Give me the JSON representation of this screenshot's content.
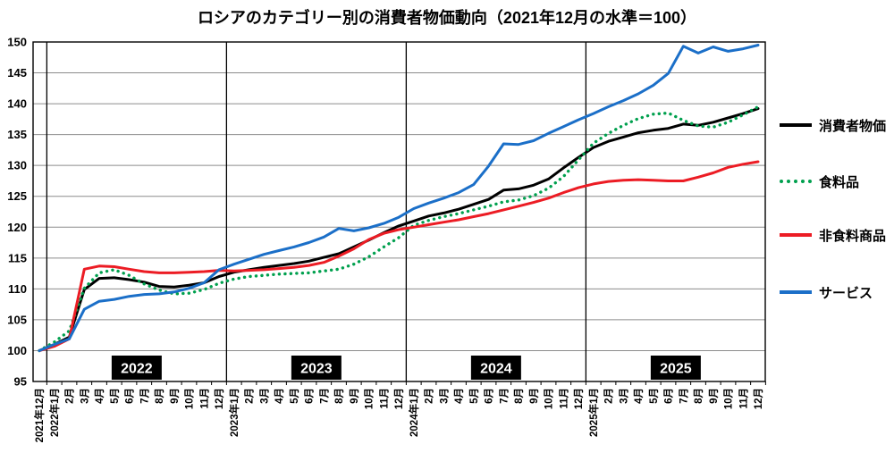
{
  "title": "ロシアのカテゴリー別の消費者物価動向（2021年12月の水準＝100）",
  "colors": {
    "cpi": "#000000",
    "food": "#00A04E",
    "nonfood": "#EC1C24",
    "services": "#1B6FC8",
    "grid": "#8c8c8c",
    "axis": "#000000",
    "year_badge_bg": "#000000",
    "year_badge_text": "#ffffff"
  },
  "chart_data": {
    "type": "line",
    "x": [
      "2021年12月",
      "2022年1月",
      "2月",
      "3月",
      "4月",
      "5月",
      "6月",
      "7月",
      "8月",
      "9月",
      "10月",
      "11月",
      "12月",
      "2023年1月",
      "2月",
      "3月",
      "4月",
      "5月",
      "6月",
      "7月",
      "8月",
      "9月",
      "10月",
      "11月",
      "12月",
      "2024年1月",
      "2月",
      "3月",
      "4月",
      "5月",
      "6月",
      "7月",
      "8月",
      "9月",
      "10月",
      "11月",
      "12月",
      "2025年1月",
      "2月",
      "3月",
      "4月",
      "5月",
      "6月",
      "7月",
      "8月",
      "9月",
      "10月",
      "11月",
      "12月"
    ],
    "ylim": [
      95,
      150
    ],
    "yticks": [
      95,
      100,
      105,
      110,
      115,
      120,
      125,
      130,
      135,
      140,
      145,
      150
    ],
    "grid": true,
    "legend_position": "right",
    "year_labels": [
      "2022",
      "2023",
      "2024",
      "2025"
    ],
    "series": [
      {
        "name": "消費者物価",
        "color_key": "cpi",
        "style": "solid",
        "values": [
          100,
          101.0,
          102.2,
          109.9,
          111.7,
          111.8,
          111.5,
          111.1,
          110.4,
          110.3,
          110.6,
          111.0,
          112.0,
          112.7,
          113.1,
          113.5,
          113.8,
          114.1,
          114.5,
          115.1,
          115.7,
          116.8,
          117.9,
          119.1,
          120.2,
          121.0,
          121.8,
          122.3,
          122.9,
          123.7,
          124.5,
          126.0,
          126.2,
          126.8,
          127.8,
          129.6,
          131.3,
          132.9,
          133.9,
          134.6,
          135.3,
          135.7,
          136.0,
          136.7,
          136.5,
          137.0,
          137.7,
          138.4,
          139.2
        ]
      },
      {
        "name": "食料品",
        "color_key": "food",
        "style": "dotted",
        "values": [
          100,
          101.4,
          103.2,
          110.1,
          112.6,
          113.1,
          112.2,
          110.8,
          109.8,
          109.2,
          109.3,
          109.9,
          110.9,
          111.6,
          112.0,
          112.2,
          112.4,
          112.5,
          112.6,
          112.9,
          113.2,
          114.0,
          115.2,
          116.8,
          118.3,
          120.3,
          121.1,
          121.7,
          122.2,
          122.8,
          123.4,
          124.1,
          124.4,
          125.1,
          126.3,
          128.2,
          130.9,
          133.6,
          135.2,
          136.5,
          137.6,
          138.3,
          138.5,
          137.3,
          136.4,
          136.2,
          137.0,
          138.2,
          139.5
        ]
      },
      {
        "name": "非食料商品",
        "color_key": "nonfood",
        "style": "solid",
        "values": [
          100,
          100.7,
          101.9,
          113.2,
          113.7,
          113.6,
          113.2,
          112.8,
          112.6,
          112.6,
          112.7,
          112.8,
          113.0,
          112.9,
          113.0,
          113.1,
          113.3,
          113.5,
          113.8,
          114.3,
          115.3,
          116.5,
          118.0,
          119.0,
          119.6,
          120.0,
          120.4,
          120.8,
          121.2,
          121.7,
          122.2,
          122.8,
          123.4,
          124.0,
          124.7,
          125.6,
          126.4,
          127.0,
          127.4,
          127.6,
          127.7,
          127.6,
          127.5,
          127.5,
          128.1,
          128.8,
          129.7,
          130.2,
          130.6
        ]
      },
      {
        "name": "サービス",
        "color_key": "services",
        "style": "solid",
        "values": [
          100,
          101.0,
          101.9,
          106.7,
          108.0,
          108.3,
          108.8,
          109.1,
          109.2,
          109.5,
          110.1,
          111.0,
          113.1,
          114.0,
          114.8,
          115.6,
          116.2,
          116.8,
          117.5,
          118.4,
          119.8,
          119.4,
          119.9,
          120.6,
          121.6,
          123.0,
          123.9,
          124.7,
          125.6,
          126.9,
          129.9,
          133.5,
          133.4,
          134.0,
          135.2,
          136.3,
          137.4,
          138.4,
          139.5,
          140.5,
          141.6,
          143.0,
          144.9,
          149.3,
          148.2,
          149.2,
          148.5,
          148.9,
          149.5
        ]
      }
    ]
  }
}
